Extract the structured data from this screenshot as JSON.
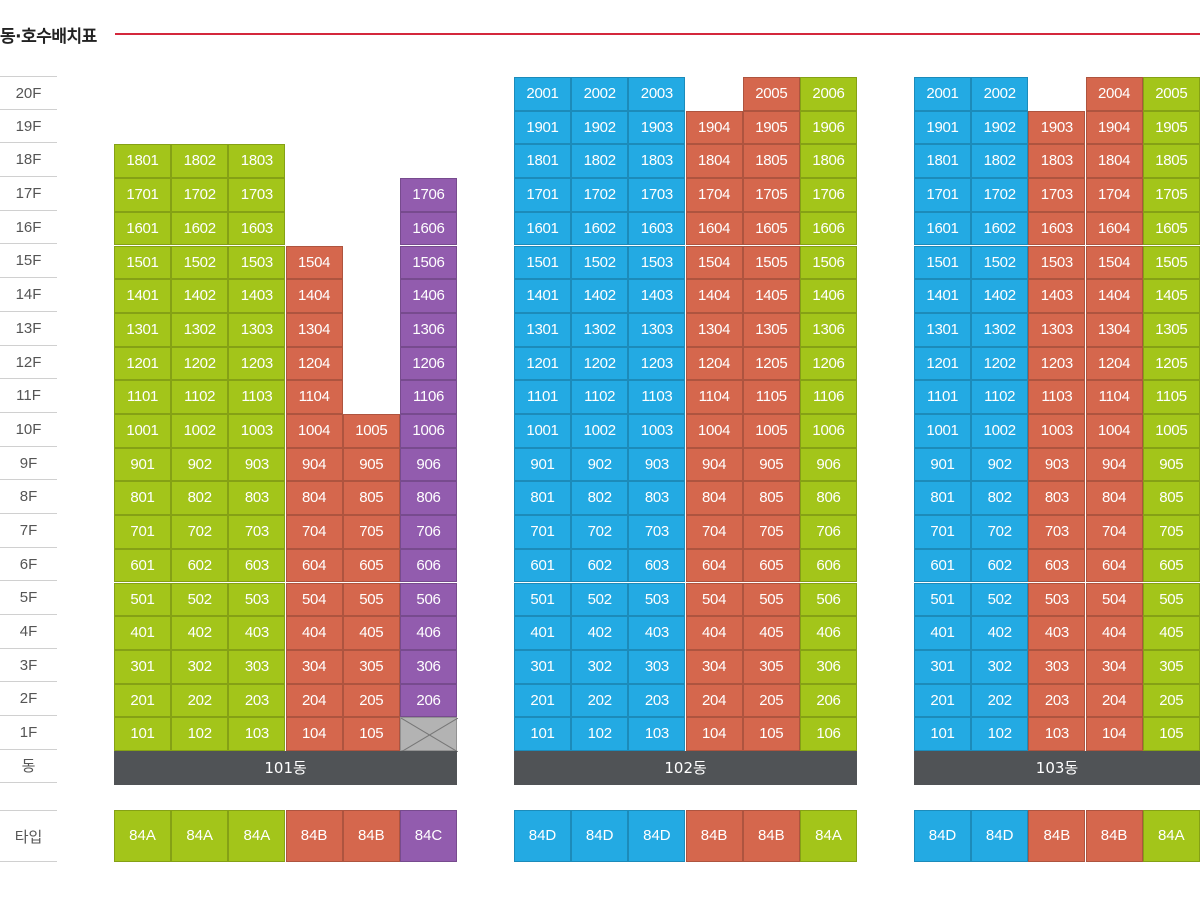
{
  "title": "동·호수배치표",
  "colors": {
    "84A": "#a3c51a",
    "84B": "#d5674d",
    "84C": "#925cae",
    "84D": "#23aae3",
    "line": "#d4283c",
    "label_bg": "#505356"
  },
  "floors": [
    "20F",
    "19F",
    "18F",
    "17F",
    "16F",
    "15F",
    "14F",
    "13F",
    "12F",
    "11F",
    "10F",
    "9F",
    "8F",
    "7F",
    "6F",
    "5F",
    "4F",
    "3F",
    "2F",
    "1F",
    "동"
  ],
  "type_label": "타입",
  "buildings": [
    {
      "name": "101동",
      "lines": [
        {
          "line": "01",
          "type": "84A",
          "top_floor": 18
        },
        {
          "line": "02",
          "type": "84A",
          "top_floor": 18
        },
        {
          "line": "03",
          "type": "84A",
          "top_floor": 18
        },
        {
          "line": "04",
          "type": "84B",
          "top_floor": 15
        },
        {
          "line": "05",
          "type": "84B",
          "top_floor": 10
        },
        {
          "line": "06",
          "type": "84C",
          "top_floor": 17,
          "empty_floors": [
            1
          ]
        }
      ]
    },
    {
      "name": "102동",
      "lines": [
        {
          "line": "01",
          "type": "84D",
          "top_floor": 20
        },
        {
          "line": "02",
          "type": "84D",
          "top_floor": 20
        },
        {
          "line": "03",
          "type": "84D",
          "top_floor": 20
        },
        {
          "line": "04",
          "type": "84B",
          "top_floor": 19
        },
        {
          "line": "05",
          "type": "84B",
          "top_floor": 20
        },
        {
          "line": "06",
          "type": "84A",
          "top_floor": 20
        }
      ]
    },
    {
      "name": "103동",
      "lines": [
        {
          "line": "01",
          "type": "84D",
          "top_floor": 20
        },
        {
          "line": "02",
          "type": "84D",
          "top_floor": 20
        },
        {
          "line": "03",
          "type": "84B",
          "top_floor": 19
        },
        {
          "line": "04",
          "type": "84B",
          "top_floor": 20
        },
        {
          "line": "05",
          "type": "84A",
          "top_floor": 20
        }
      ]
    }
  ]
}
